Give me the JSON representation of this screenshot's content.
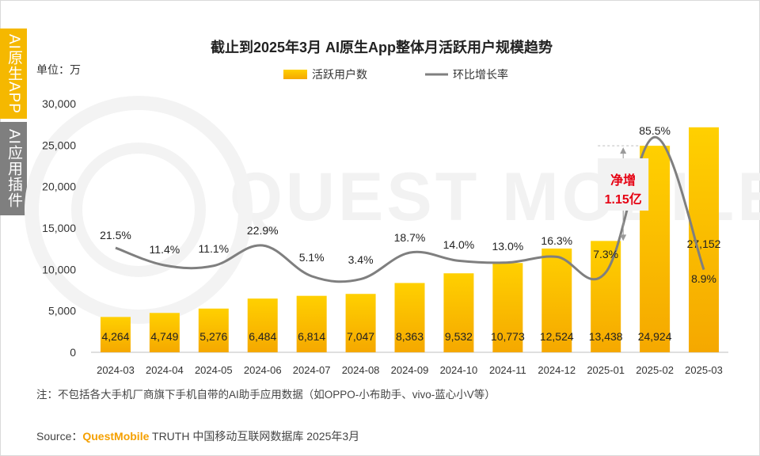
{
  "side_tabs": {
    "primary": "AI原生APP",
    "secondary": "AI应用插件"
  },
  "unit_label": "单位：万",
  "watermark": "QUEST MOBILE",
  "note": "注：不包括各大手机厂商旗下手机自带的AI助手应用数据（如OPPO-小布助手、vivo-蓝心小V等）",
  "source": {
    "prefix": "Source：",
    "brand": "QuestMobile",
    "rest": " TRUTH 中国移动互联网数据库 2025年3月"
  },
  "colors": {
    "bar_top": "#ffd000",
    "bar_bottom": "#f5a800",
    "line": "#7f7f7f",
    "annotation": "#e60012",
    "axis_text": "#333333"
  },
  "chart_data": {
    "type": "bar",
    "title": "截止到2025年3月 AI原生App整体月活跃用户规模趋势",
    "categories": [
      "2024-03",
      "2024-04",
      "2024-05",
      "2024-06",
      "2024-07",
      "2024-08",
      "2024-09",
      "2024-10",
      "2024-11",
      "2024-12",
      "2025-01",
      "2025-02",
      "2025-03"
    ],
    "series": [
      {
        "name": "活跃用户数",
        "type": "bar",
        "values": [
          4264,
          4749,
          5276,
          6484,
          6814,
          7047,
          8363,
          9532,
          10773,
          12524,
          13438,
          24924,
          27152
        ],
        "labels": [
          "4,264",
          "4,749",
          "5,276",
          "6,484",
          "6,814",
          "7,047",
          "8,363",
          "9,532",
          "10,773",
          "12,524",
          "13,438",
          "24,924",
          "27,152"
        ]
      },
      {
        "name": "环比增长率",
        "type": "line",
        "values": [
          21.5,
          11.4,
          11.1,
          22.9,
          5.1,
          3.4,
          18.7,
          14.0,
          13.0,
          16.3,
          7.3,
          85.5,
          8.9
        ],
        "labels": [
          "21.5%",
          "11.4%",
          "11.1%",
          "22.9%",
          "5.1%",
          "3.4%",
          "18.7%",
          "14.0%",
          "13.0%",
          "16.3%",
          "7.3%",
          "85.5%",
          "8.9%"
        ]
      }
    ],
    "ylim": [
      0,
      30000
    ],
    "yticks": [
      0,
      5000,
      10000,
      15000,
      20000,
      25000,
      30000
    ],
    "ytick_labels": [
      "0",
      "5,000",
      "10,000",
      "15,000",
      "20,000",
      "25,000",
      "30,000"
    ],
    "legend": [
      "活跃用户数",
      "环比增长率"
    ],
    "annotation": {
      "line1": "净增",
      "line2": "1.15亿",
      "from_category": "2025-01",
      "to_category": "2025-02"
    }
  }
}
